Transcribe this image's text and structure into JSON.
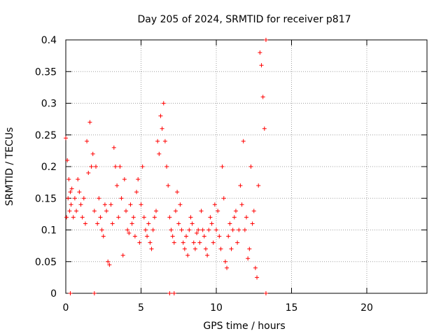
{
  "chart_data": {
    "type": "scatter",
    "title": "Day 205 of 2024, SRMTID for receiver p817",
    "xlabel": "GPS time / hours",
    "ylabel": "SRMTID / TECUs",
    "xlim": [
      0,
      24
    ],
    "ylim": [
      0,
      0.4
    ],
    "xticks": [
      0,
      5,
      10,
      15,
      20
    ],
    "xtick_labels": [
      "0",
      "5",
      "10",
      "15",
      "20"
    ],
    "yticks": [
      0,
      0.05,
      0.1,
      0.15,
      0.2,
      0.25,
      0.3,
      0.35,
      0.4
    ],
    "ytick_labels": [
      "0",
      "0.05",
      "0.1",
      "0.15",
      "0.2",
      "0.25",
      "0.3",
      "0.35",
      "0.4"
    ],
    "grid": true,
    "marker": "+",
    "color": "#ff0000",
    "series": [
      {
        "name": "SRMTID",
        "x": [
          0.0,
          0.05,
          0.1,
          0.15,
          0.2,
          0.25,
          0.3,
          0.35,
          0.4,
          0.5,
          0.6,
          0.7,
          0.8,
          0.9,
          1.0,
          1.1,
          1.2,
          1.3,
          1.4,
          1.5,
          1.6,
          1.7,
          1.8,
          1.9,
          2.0,
          2.1,
          2.2,
          2.3,
          2.4,
          2.5,
          2.6,
          2.7,
          2.8,
          2.9,
          3.0,
          3.1,
          3.2,
          3.3,
          3.4,
          3.5,
          3.6,
          3.7,
          3.8,
          3.9,
          4.0,
          4.1,
          4.2,
          4.3,
          4.4,
          4.5,
          4.6,
          4.7,
          4.8,
          4.9,
          5.0,
          5.1,
          5.2,
          5.3,
          5.4,
          5.5,
          5.6,
          5.7,
          5.8,
          5.9,
          6.0,
          6.1,
          6.2,
          6.3,
          6.4,
          6.5,
          6.6,
          6.7,
          6.8,
          6.9,
          7.0,
          7.1,
          7.2,
          7.3,
          7.4,
          7.5,
          7.6,
          7.7,
          7.8,
          7.9,
          8.0,
          8.1,
          8.2,
          8.3,
          8.4,
          8.5,
          8.6,
          8.7,
          8.8,
          8.9,
          9.0,
          9.1,
          9.2,
          9.3,
          9.4,
          9.5,
          9.6,
          9.7,
          9.8,
          9.9,
          10.0,
          10.1,
          10.2,
          10.3,
          10.4,
          10.5,
          10.6,
          10.7,
          10.8,
          10.9,
          11.0,
          11.1,
          11.2,
          11.3,
          11.4,
          11.5,
          11.6,
          11.7,
          11.8,
          11.9,
          12.0,
          12.1,
          12.2,
          12.3,
          12.4,
          12.5,
          12.6,
          12.7,
          12.8,
          12.9,
          13.0,
          13.1,
          13.2,
          13.3,
          0.3,
          1.9,
          6.9,
          7.2,
          13.3
        ],
        "y": [
          0.245,
          0.12,
          0.21,
          0.15,
          0.18,
          0.13,
          0.16,
          0.14,
          0.165,
          0.12,
          0.15,
          0.13,
          0.18,
          0.16,
          0.14,
          0.12,
          0.15,
          0.11,
          0.24,
          0.19,
          0.27,
          0.2,
          0.22,
          0.13,
          0.2,
          0.11,
          0.15,
          0.12,
          0.1,
          0.09,
          0.14,
          0.13,
          0.05,
          0.045,
          0.14,
          0.11,
          0.23,
          0.2,
          0.17,
          0.12,
          0.2,
          0.15,
          0.06,
          0.18,
          0.13,
          0.1,
          0.095,
          0.14,
          0.11,
          0.12,
          0.09,
          0.16,
          0.18,
          0.08,
          0.14,
          0.2,
          0.12,
          0.1,
          0.09,
          0.11,
          0.08,
          0.07,
          0.1,
          0.12,
          0.13,
          0.24,
          0.22,
          0.28,
          0.26,
          0.3,
          0.24,
          0.2,
          0.17,
          0.12,
          0.1,
          0.09,
          0.08,
          0.13,
          0.16,
          0.11,
          0.14,
          0.1,
          0.08,
          0.07,
          0.09,
          0.06,
          0.1,
          0.12,
          0.11,
          0.08,
          0.07,
          0.095,
          0.1,
          0.08,
          0.13,
          0.1,
          0.09,
          0.07,
          0.06,
          0.1,
          0.12,
          0.11,
          0.08,
          0.14,
          0.1,
          0.13,
          0.09,
          0.07,
          0.2,
          0.15,
          0.05,
          0.04,
          0.09,
          0.11,
          0.07,
          0.1,
          0.12,
          0.13,
          0.08,
          0.1,
          0.17,
          0.14,
          0.24,
          0.1,
          0.12,
          0.055,
          0.07,
          0.2,
          0.11,
          0.13,
          0.04,
          0.025,
          0.17,
          0.38,
          0.36,
          0.31,
          0.26,
          0.4,
          0.0,
          0.0,
          0.0,
          0.0,
          0.0
        ]
      }
    ]
  }
}
